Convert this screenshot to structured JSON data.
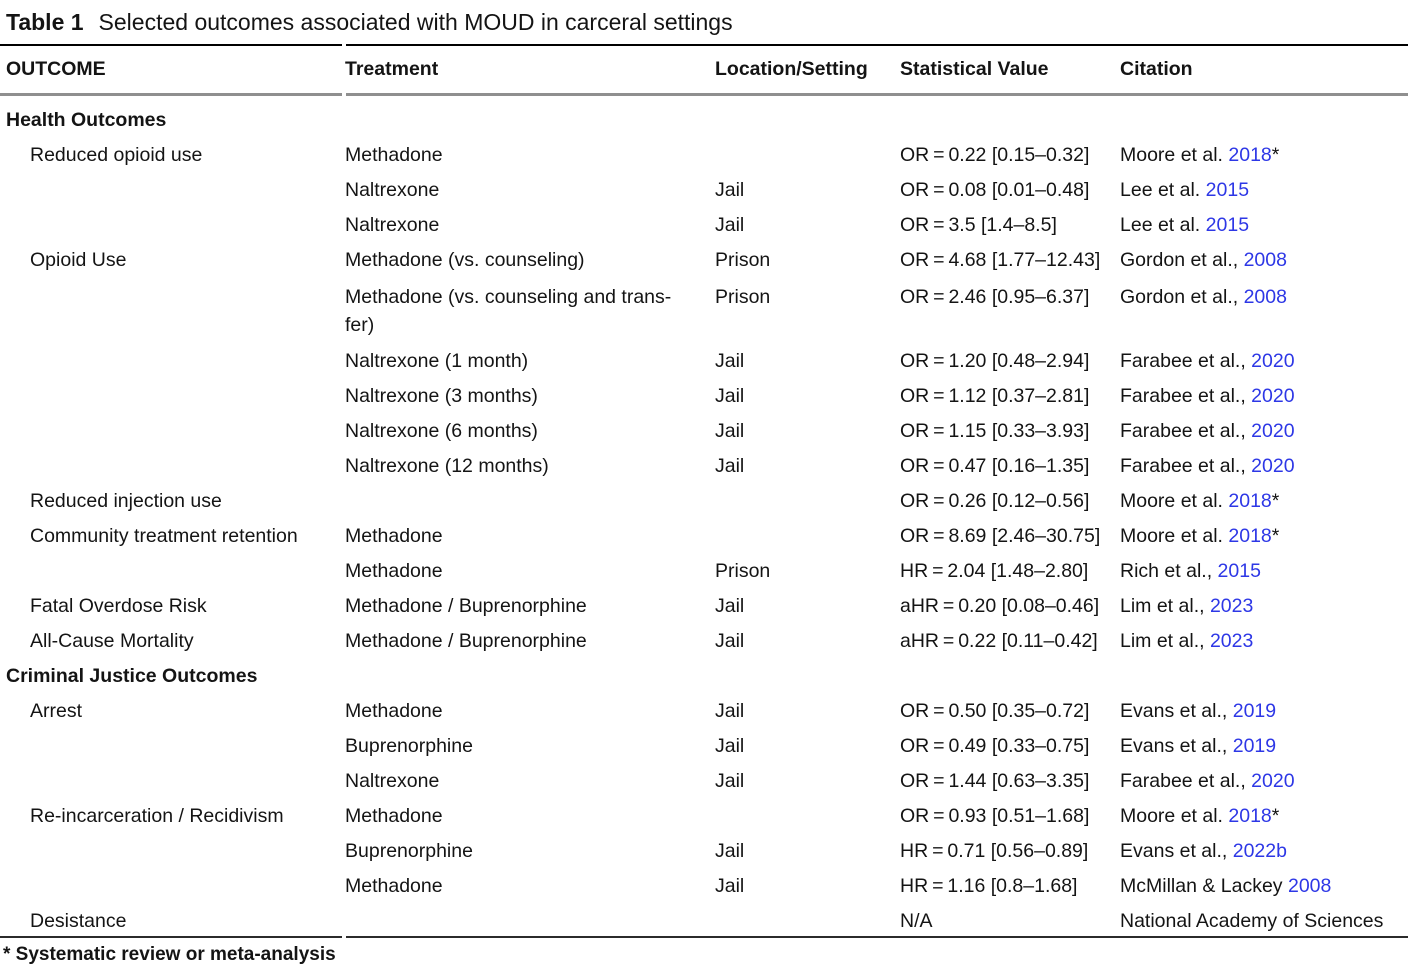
{
  "title": {
    "label": "Table 1",
    "caption": "Selected outcomes associated with MOUD in carceral settings"
  },
  "columns": {
    "outcome": "OUTCOME",
    "treatment": "Treatment",
    "location": "Location/Setting",
    "stat": "Statistical Value",
    "citation": "Citation"
  },
  "colors": {
    "link_blue": "#2d37e6",
    "rule_gray": "#8f8f8f",
    "text": "#141414"
  },
  "rows": [
    {
      "type": "section",
      "outcome": "Health Outcomes",
      "treatment": "",
      "location": "",
      "stat": "",
      "citation": {
        "pre": "",
        "year": "",
        "post": ""
      }
    },
    {
      "type": "data",
      "outcome": "Reduced opioid use",
      "treatment": "Methadone",
      "location": "",
      "stat": "OR = 0.22 [0.15–0.32]",
      "citation": {
        "pre": "Moore et al. ",
        "year": "2018",
        "post": "*"
      }
    },
    {
      "type": "data",
      "outcome": "",
      "treatment": "Naltrexone",
      "location": "Jail",
      "stat": "OR = 0.08 [0.01–0.48]",
      "citation": {
        "pre": "Lee et al. ",
        "year": "2015",
        "post": ""
      }
    },
    {
      "type": "data",
      "outcome": "",
      "treatment": "Naltrexone",
      "location": "Jail",
      "stat": "OR = 3.5 [1.4–8.5]",
      "citation": {
        "pre": "Lee et al. ",
        "year": "2015",
        "post": ""
      }
    },
    {
      "type": "data",
      "outcome": "Opioid Use",
      "treatment": "Methadone (vs. counseling)",
      "location": "Prison",
      "stat": "OR = 4.68 [1.77–12.43]",
      "citation": {
        "pre": "Gordon et al., ",
        "year": "2008",
        "post": ""
      }
    },
    {
      "type": "data",
      "outcome": "",
      "treatment": "Methadone (vs. counseling and trans-\nfer)",
      "location": "Prison",
      "stat": "OR = 2.46 [0.95–6.37]",
      "citation": {
        "pre": "Gordon et al., ",
        "year": "2008",
        "post": ""
      }
    },
    {
      "type": "data",
      "outcome": "",
      "treatment": "Naltrexone (1 month)",
      "location": "Jail",
      "stat": "OR = 1.20 [0.48–2.94]",
      "citation": {
        "pre": "Farabee et al., ",
        "year": "2020",
        "post": ""
      }
    },
    {
      "type": "data",
      "outcome": "",
      "treatment": "Naltrexone (3 months)",
      "location": "Jail",
      "stat": "OR = 1.12 [0.37–2.81]",
      "citation": {
        "pre": "Farabee et al., ",
        "year": "2020",
        "post": ""
      }
    },
    {
      "type": "data",
      "outcome": "",
      "treatment": "Naltrexone (6 months)",
      "location": "Jail",
      "stat": "OR = 1.15 [0.33–3.93]",
      "citation": {
        "pre": "Farabee et al., ",
        "year": "2020",
        "post": ""
      }
    },
    {
      "type": "data",
      "outcome": "",
      "treatment": "Naltrexone (12 months)",
      "location": "Jail",
      "stat": "OR = 0.47 [0.16–1.35]",
      "citation": {
        "pre": "Farabee et al., ",
        "year": "2020",
        "post": ""
      }
    },
    {
      "type": "data",
      "outcome": "Reduced injection use",
      "treatment": "",
      "location": "",
      "stat": "OR = 0.26 [0.12–0.56]",
      "citation": {
        "pre": "Moore et al. ",
        "year": "2018",
        "post": "*"
      }
    },
    {
      "type": "data",
      "outcome": "Community treatment retention",
      "treatment": "Methadone",
      "location": "",
      "stat": "OR = 8.69 [2.46–30.75]",
      "citation": {
        "pre": "Moore et al. ",
        "year": "2018",
        "post": "*"
      }
    },
    {
      "type": "data",
      "outcome": "",
      "treatment": "Methadone",
      "location": "Prison",
      "stat": "HR = 2.04 [1.48–2.80]",
      "citation": {
        "pre": "Rich et al., ",
        "year": "2015",
        "post": ""
      }
    },
    {
      "type": "data",
      "outcome": "Fatal Overdose Risk",
      "treatment": "Methadone / Buprenorphine",
      "location": "Jail",
      "stat": "aHR = 0.20 [0.08–0.46]",
      "citation": {
        "pre": "Lim et al., ",
        "year": "2023",
        "post": ""
      }
    },
    {
      "type": "data",
      "outcome": "All-Cause Mortality",
      "treatment": "Methadone / Buprenorphine",
      "location": "Jail",
      "stat": "aHR = 0.22 [0.11–0.42]",
      "citation": {
        "pre": "Lim et al., ",
        "year": "2023",
        "post": ""
      }
    },
    {
      "type": "section",
      "outcome": "Criminal Justice Outcomes",
      "treatment": "",
      "location": "",
      "stat": "",
      "citation": {
        "pre": "",
        "year": "",
        "post": ""
      }
    },
    {
      "type": "data",
      "outcome": "Arrest",
      "treatment": "Methadone",
      "location": "Jail",
      "stat": "OR = 0.50 [0.35–0.72]",
      "citation": {
        "pre": "Evans et al., ",
        "year": "2019",
        "post": ""
      }
    },
    {
      "type": "data",
      "outcome": "",
      "treatment": "Buprenorphine",
      "location": "Jail",
      "stat": "OR = 0.49 [0.33–0.75]",
      "citation": {
        "pre": "Evans et al., ",
        "year": "2019",
        "post": ""
      }
    },
    {
      "type": "data",
      "outcome": "",
      "treatment": "Naltrexone",
      "location": "Jail",
      "stat": "OR = 1.44 [0.63–3.35]",
      "citation": {
        "pre": "Farabee et al., ",
        "year": "2020",
        "post": ""
      }
    },
    {
      "type": "data",
      "outcome": "Re-incarceration / Recidivism",
      "treatment": "Methadone",
      "location": "",
      "stat": "OR = 0.93 [0.51–1.68]",
      "citation": {
        "pre": "Moore et al. ",
        "year": "2018",
        "post": "*"
      }
    },
    {
      "type": "data",
      "outcome": "",
      "treatment": "Buprenorphine",
      "location": "Jail",
      "stat": "HR = 0.71 [0.56–0.89]",
      "citation": {
        "pre": "Evans et al., ",
        "year": "2022b",
        "post": ""
      }
    },
    {
      "type": "data",
      "outcome": "",
      "treatment": "Methadone",
      "location": "Jail",
      "stat": "HR = 1.16 [0.8–1.68]",
      "citation": {
        "pre": "McMillan & Lackey ",
        "year": "2008",
        "post": ""
      }
    },
    {
      "type": "data",
      "outcome": "Desistance",
      "treatment": "",
      "location": "",
      "stat": "N/A",
      "citation": {
        "pre": "National Academy of Sciences",
        "year": "",
        "post": ""
      }
    }
  ],
  "footnote": "* Systematic review or meta-analysis"
}
